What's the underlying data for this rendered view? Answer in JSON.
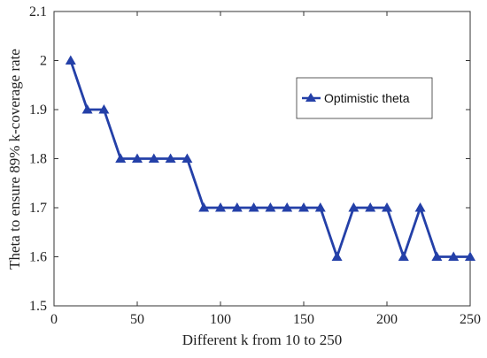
{
  "chart_data": {
    "type": "line",
    "xlabel": "Different k from 10 to 250",
    "ylabel": "Theta to ensure 89% k-coverage rate",
    "xlim": [
      0,
      250
    ],
    "ylim": [
      1.5,
      2.1
    ],
    "x_ticks": [
      "0",
      "50",
      "100",
      "150",
      "200",
      "250"
    ],
    "y_ticks": [
      "1.5",
      "1.6",
      "1.7",
      "1.8",
      "1.9",
      "2",
      "2.1"
    ],
    "grid": false,
    "legend_position": "right",
    "series": [
      {
        "name": "Optimistic theta",
        "color": "#2440a8",
        "marker": "triangle",
        "x": [
          10,
          20,
          30,
          40,
          50,
          60,
          70,
          80,
          90,
          100,
          110,
          120,
          130,
          140,
          150,
          160,
          170,
          180,
          190,
          200,
          210,
          220,
          230,
          240,
          250
        ],
        "y": [
          2.0,
          1.9,
          1.9,
          1.8,
          1.8,
          1.8,
          1.8,
          1.8,
          1.7,
          1.7,
          1.7,
          1.7,
          1.7,
          1.7,
          1.7,
          1.7,
          1.6,
          1.7,
          1.7,
          1.7,
          1.6,
          1.7,
          1.6,
          1.6,
          1.6
        ]
      }
    ]
  }
}
